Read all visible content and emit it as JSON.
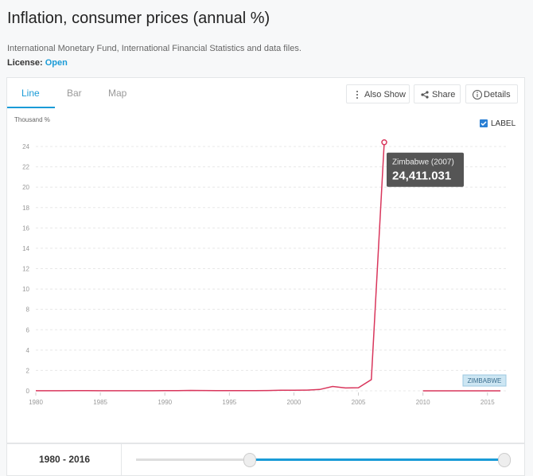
{
  "header": {
    "title": "Inflation, consumer prices (annual %)",
    "source": "International Monetary Fund, International Financial Statistics and data files.",
    "license_label": "License:",
    "license": "Open"
  },
  "tabs": [
    "Line",
    "Bar",
    "Map"
  ],
  "buttons": [
    "Also Show",
    "Share",
    "Details"
  ],
  "chart_data": {
    "type": "line",
    "y_label": "Thousand %",
    "label_toggle": "LABEL",
    "x": [
      1980,
      1981,
      1982,
      1983,
      1984,
      1985,
      1986,
      1987,
      1988,
      1989,
      1990,
      1991,
      1992,
      1993,
      1994,
      1995,
      1996,
      1997,
      1998,
      1999,
      2000,
      2001,
      2002,
      2003,
      2004,
      2005,
      2006,
      2007,
      2008,
      2009,
      2010,
      2011,
      2012,
      2013,
      2014,
      2015,
      2016
    ],
    "series": [
      {
        "name": "ZIMBABWE",
        "color": "#d9365c",
        "values": [
          0.005,
          0.013,
          0.011,
          0.023,
          0.02,
          0.008,
          0.014,
          0.013,
          0.007,
          0.013,
          0.017,
          0.023,
          0.042,
          0.028,
          0.022,
          0.023,
          0.021,
          0.019,
          0.032,
          0.058,
          0.056,
          0.073,
          0.133,
          0.43,
          0.28,
          0.3,
          1.1,
          24.411031,
          null,
          null,
          0.003,
          0.004,
          0.004,
          0.002,
          0.0,
          -0.002,
          -0.002
        ]
      }
    ],
    "xlim": [
      1980,
      2016
    ],
    "xticks": [
      1980,
      1985,
      1990,
      1995,
      2000,
      2005,
      2010,
      2015
    ],
    "ylim": [
      0,
      24
    ],
    "yticks": [
      0,
      2,
      4,
      6,
      8,
      10,
      12,
      14,
      16,
      18,
      20,
      22,
      24
    ],
    "grid": true,
    "tooltip": {
      "title": "Zimbabwe (2007)",
      "value_label": "24,411.031"
    }
  },
  "footer": {
    "range": "1980 - 2016"
  }
}
